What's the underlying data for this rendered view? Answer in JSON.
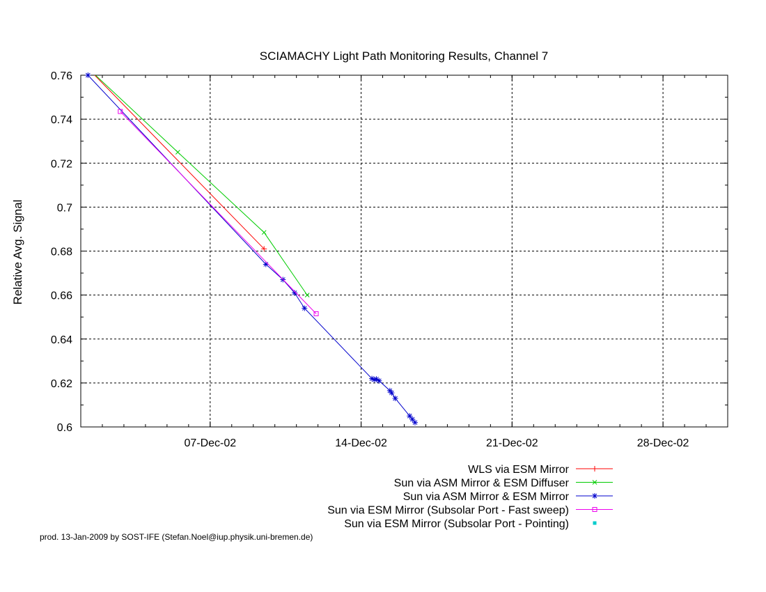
{
  "chart_data": {
    "type": "line",
    "title": "SCIAMACHY Light Path Monitoring Results, Channel 7",
    "xlabel": "",
    "ylabel": "Relative Avg. Signal",
    "xlim": [
      "2002-12-01",
      "2002-12-31"
    ],
    "ylim": [
      0.6,
      0.76
    ],
    "grid": true,
    "legend_position": "bottom-right",
    "x_ticks": [
      {
        "date": "2002-12-07",
        "label": "07-Dec-02"
      },
      {
        "date": "2002-12-14",
        "label": "14-Dec-02"
      },
      {
        "date": "2002-12-21",
        "label": "21-Dec-02"
      },
      {
        "date": "2002-12-28",
        "label": "28-Dec-02"
      }
    ],
    "y_ticks": [
      {
        "value": 0.6,
        "label": "0.6"
      },
      {
        "value": 0.62,
        "label": "0.62"
      },
      {
        "value": 0.64,
        "label": "0.64"
      },
      {
        "value": 0.66,
        "label": "0.66"
      },
      {
        "value": 0.68,
        "label": "0.68"
      },
      {
        "value": 0.7,
        "label": "0.7"
      },
      {
        "value": 0.72,
        "label": "0.72"
      },
      {
        "value": 0.74,
        "label": "0.74"
      },
      {
        "value": 0.76,
        "label": "0.76"
      }
    ],
    "series": [
      {
        "name": "WLS via ESM Mirror",
        "color": "#ff0000",
        "marker": "plus",
        "points": [
          [
            "2002-12-01 06:00",
            0.764
          ],
          [
            "2002-12-09 12:00",
            0.681
          ]
        ]
      },
      {
        "name": "Sun via ASM Mirror & ESM Diffuser",
        "color": "#00cc00",
        "marker": "cross",
        "points": [
          [
            "2002-12-01 06:00",
            0.764
          ],
          [
            "2002-12-05 12:00",
            0.725
          ],
          [
            "2002-12-09 12:00",
            0.6885
          ],
          [
            "2002-12-11 12:00",
            0.66
          ]
        ]
      },
      {
        "name": "Sun via ASM Mirror & ESM Mirror",
        "color": "#0000cc",
        "marker": "star",
        "points": [
          [
            "2002-12-01 08:00",
            0.76
          ],
          [
            "2002-12-09 14:00",
            0.674
          ],
          [
            "2002-12-10 09:00",
            0.667
          ],
          [
            "2002-12-10 22:00",
            0.661
          ],
          [
            "2002-12-11 09:00",
            0.654
          ],
          [
            "2002-12-14 12:00",
            0.622
          ],
          [
            "2002-12-14 15:00",
            0.6215
          ],
          [
            "2002-12-14 17:00",
            0.6218
          ],
          [
            "2002-12-14 20:00",
            0.621
          ],
          [
            "2002-12-15 08:00",
            0.6165
          ],
          [
            "2002-12-15 10:00",
            0.6155
          ],
          [
            "2002-12-15 14:00",
            0.613
          ],
          [
            "2002-12-16 06:00",
            0.605
          ],
          [
            "2002-12-16 09:00",
            0.6035
          ],
          [
            "2002-12-16 12:00",
            0.602
          ]
        ]
      },
      {
        "name": "Sun via ESM Mirror (Subsolar Port - Fast sweep)",
        "color": "#ee00ee",
        "marker": "square",
        "points": [
          [
            "2002-12-02 20:00",
            0.7435
          ],
          [
            "2002-12-11 22:00",
            0.6515
          ]
        ]
      },
      {
        "name": "Sun via ESM Mirror (Subsolar Port - Pointing)",
        "color": "#00cccc",
        "marker": "dot",
        "points": []
      }
    ]
  },
  "footer": "prod. 13-Jan-2009 by SOST-IFE (Stefan.Noel@iup.physik.uni-bremen.de)"
}
